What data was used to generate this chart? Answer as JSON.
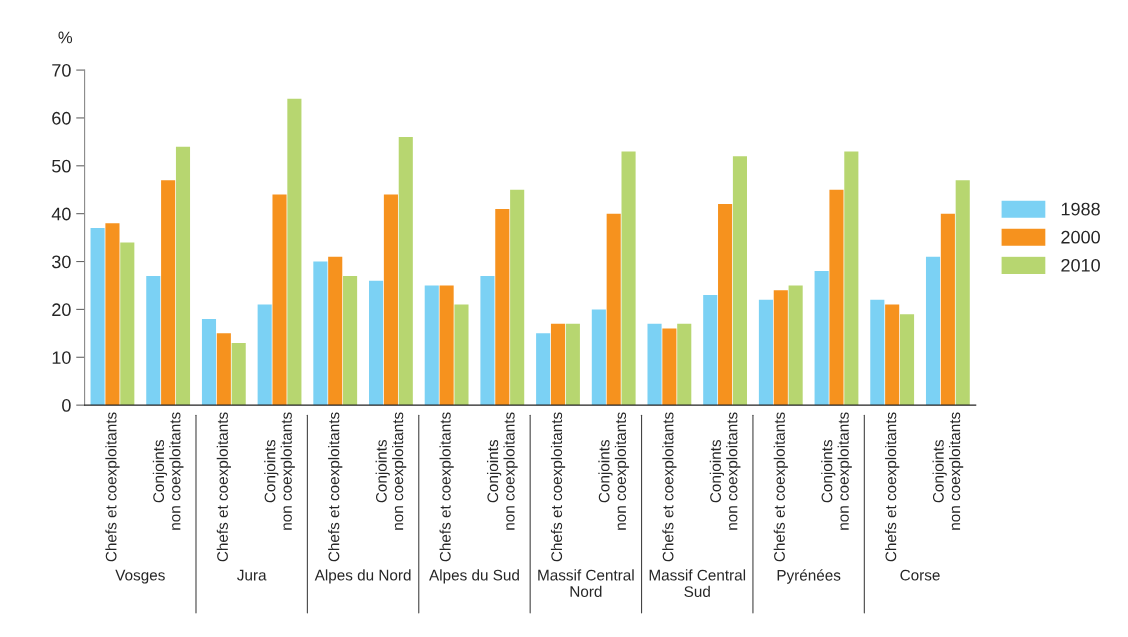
{
  "chart_data": {
    "type": "bar",
    "ylabel": "%",
    "categories": [
      "Chefs et coexploitants",
      "Conjoints\nnon coexploitants",
      "Chefs et coexploitants",
      "Conjoints\nnon coexploitants",
      "Chefs et coexploitants",
      "Conjoints\nnon coexploitants",
      "Chefs et coexploitants",
      "Conjoints\nnon coexploitants",
      "Chefs et coexploitants",
      "Conjoints\nnon coexploitants",
      "Chefs et coexploitants",
      "Conjoints\nnon coexploitants",
      "Chefs et coexploitants",
      "Conjoints\nnon coexploitants",
      "Chefs et coexploitants",
      "Conjoints\nnon coexploitants"
    ],
    "series": [
      {
        "name": "1988",
        "color": "#7bd1f4",
        "values": [
          37,
          27,
          18,
          21,
          30,
          26,
          25,
          27,
          15,
          20,
          17,
          23,
          22,
          28,
          22,
          31
        ]
      },
      {
        "name": "2000",
        "color": "#f6921e",
        "values": [
          38,
          47,
          15,
          44,
          31,
          44,
          25,
          41,
          17,
          40,
          16,
          42,
          24,
          45,
          21,
          40
        ]
      },
      {
        "name": "2010",
        "color": "#b7d670",
        "values": [
          34,
          54,
          13,
          64,
          27,
          56,
          21,
          45,
          17,
          53,
          17,
          52,
          25,
          53,
          19,
          47
        ]
      }
    ],
    "annotations": [
      "Vosges",
      "Jura",
      "Alpes du Nord",
      "Alpes du Sud",
      "Massif Central\nNord",
      "Massif Central\nSud",
      "Pyrénées",
      "Corse"
    ],
    "ylim": [
      0,
      70
    ],
    "yticks": [
      0,
      10,
      20,
      30,
      40,
      50,
      60,
      70
    ],
    "legend": "right",
    "grid": false
  }
}
